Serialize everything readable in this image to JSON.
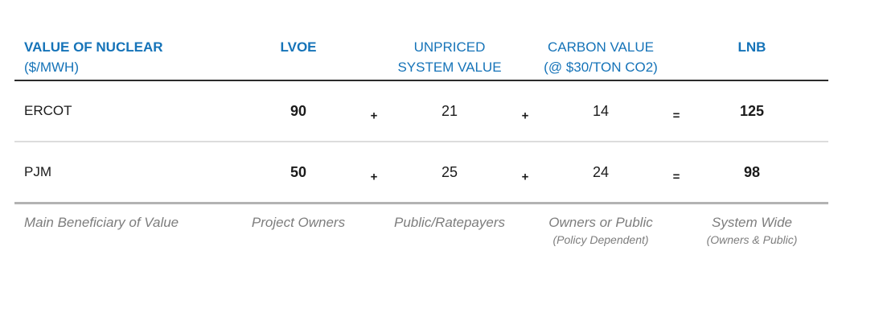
{
  "display": {
    "title_line1": "VALUE OF NUCLEAR",
    "title_line2": "($/MWH)",
    "col_lvoe": "LVOE",
    "col_unpriced_line1": "UNPRICED",
    "col_unpriced_line2": "SYSTEM VALUE",
    "col_carbon_line1": "CARBON VALUE",
    "col_carbon_line2": "(@ $30/TON CO2)",
    "col_lnb": "LNB",
    "operators": {
      "plus": "+",
      "equals": "="
    },
    "footer_label": "Main Beneficiary of Value",
    "beneficiaries": [
      {
        "main": "Project Owners",
        "sub": ""
      },
      {
        "main": "Public/Ratepayers",
        "sub": ""
      },
      {
        "main": "Owners or Public",
        "sub": "(Policy Dependent)"
      },
      {
        "main": "System Wide",
        "sub": "(Owners & Public)"
      }
    ]
  },
  "chart_data": {
    "type": "table",
    "title": "VALUE OF NUCLEAR ($/MWH)",
    "columns": [
      "LVOE",
      "UNPRICED SYSTEM VALUE",
      "CARBON VALUE (@ $30/TON CO2)",
      "LNB"
    ],
    "rows": [
      {
        "label": "ERCOT",
        "values": [
          90,
          21,
          14,
          125
        ]
      },
      {
        "label": "PJM",
        "values": [
          50,
          25,
          24,
          98
        ]
      }
    ],
    "formula": "LVOE + UNPRICED SYSTEM VALUE + CARBON VALUE = LNB",
    "footer": {
      "label": "Main Beneficiary of Value",
      "values": [
        "Project Owners",
        "Public/Ratepayers",
        "Owners or Public (Policy Dependent)",
        "System Wide (Owners & Public)"
      ]
    }
  },
  "colors": {
    "header_blue": "#1573b8",
    "text_black": "#1b1b1b",
    "footer_gray": "#7d7d7d",
    "rule_dark": "#2b2b2b",
    "rule_light": "#dcdcdc",
    "rule_mid": "#b3b3b3"
  }
}
